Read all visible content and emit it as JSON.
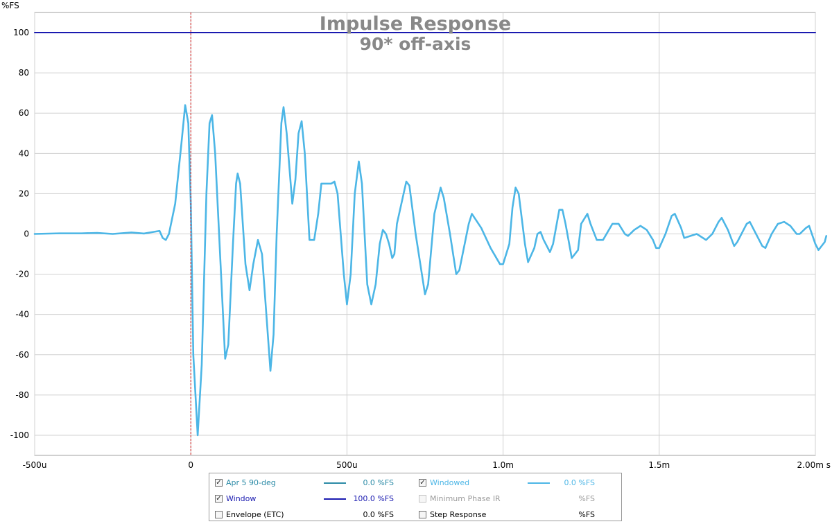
{
  "chart_data": {
    "type": "line",
    "title": "Impulse Response",
    "subtitle": "90* off-axis",
    "ylabel": "%FS",
    "xlabel": "s",
    "xlim": [
      -0.0005,
      0.002
    ],
    "ylim": [
      -110,
      110
    ],
    "x_ticks": [
      {
        "value": -0.0005,
        "label": "-500u"
      },
      {
        "value": 0,
        "label": "0"
      },
      {
        "value": 0.0005,
        "label": "500u"
      },
      {
        "value": 0.001,
        "label": "1.0m"
      },
      {
        "value": 0.0015,
        "label": "1.5m"
      },
      {
        "value": 0.002,
        "label": "2.00m s"
      }
    ],
    "y_ticks": [
      100,
      80,
      60,
      40,
      20,
      0,
      -20,
      -40,
      -60,
      -80,
      -100
    ],
    "grid": true,
    "marker_x": 0,
    "series": [
      {
        "name": "Windowed",
        "color": "#4cb6e6",
        "points": [
          [
            -0.0005,
            0
          ],
          [
            -0.00042,
            0.3
          ],
          [
            -0.00035,
            0.3
          ],
          [
            -0.0003,
            0.5
          ],
          [
            -0.00025,
            0
          ],
          [
            -0.00019,
            0.7
          ],
          [
            -0.00015,
            0.2
          ],
          [
            -0.00012,
            1
          ],
          [
            -0.0001,
            1.5
          ],
          [
            -9e-05,
            -2
          ],
          [
            -8e-05,
            -3
          ],
          [
            -7e-05,
            0
          ],
          [
            -5e-05,
            15
          ],
          [
            -3e-05,
            45
          ],
          [
            -1.8e-05,
            64
          ],
          [
            -8e-06,
            55
          ],
          [
            0,
            15
          ],
          [
            8e-06,
            -60
          ],
          [
            2.2e-05,
            -100
          ],
          [
            3.5e-05,
            -65
          ],
          [
            5e-05,
            20
          ],
          [
            6e-05,
            55
          ],
          [
            6.8e-05,
            59
          ],
          [
            7.8e-05,
            40
          ],
          [
            0.0001,
            -30
          ],
          [
            0.00011,
            -62
          ],
          [
            0.00012,
            -55
          ],
          [
            0.000135,
            -5
          ],
          [
            0.000145,
            25
          ],
          [
            0.00015,
            30
          ],
          [
            0.000158,
            25
          ],
          [
            0.000175,
            -15
          ],
          [
            0.000188,
            -28
          ],
          [
            0.0002,
            -15
          ],
          [
            0.000215,
            -3
          ],
          [
            0.000228,
            -10
          ],
          [
            0.000255,
            -68
          ],
          [
            0.000265,
            -50
          ],
          [
            0.000275,
            0
          ],
          [
            0.00029,
            55
          ],
          [
            0.000297,
            63
          ],
          [
            0.000307,
            50
          ],
          [
            0.000325,
            15
          ],
          [
            0.000335,
            27
          ],
          [
            0.000345,
            50
          ],
          [
            0.000355,
            56
          ],
          [
            0.000365,
            40
          ],
          [
            0.00038,
            -3
          ],
          [
            0.000395,
            -3
          ],
          [
            0.000408,
            10
          ],
          [
            0.000418,
            25
          ],
          [
            0.00043,
            25
          ],
          [
            0.00045,
            25
          ],
          [
            0.00046,
            26
          ],
          [
            0.00047,
            20
          ],
          [
            0.00049,
            -20
          ],
          [
            0.0005,
            -35
          ],
          [
            0.000512,
            -20
          ],
          [
            0.000525,
            20
          ],
          [
            0.000538,
            36
          ],
          [
            0.000548,
            25
          ],
          [
            0.000565,
            -25
          ],
          [
            0.000578,
            -35
          ],
          [
            0.000592,
            -25
          ],
          [
            0.000605,
            -5
          ],
          [
            0.000615,
            2
          ],
          [
            0.000625,
            0
          ],
          [
            0.000635,
            -5
          ],
          [
            0.000645,
            -12
          ],
          [
            0.000652,
            -10
          ],
          [
            0.00066,
            5
          ],
          [
            0.00069,
            26
          ],
          [
            0.0007,
            24
          ],
          [
            0.00072,
            0
          ],
          [
            0.00075,
            -30
          ],
          [
            0.00076,
            -25
          ],
          [
            0.00078,
            10
          ],
          [
            0.0008,
            23
          ],
          [
            0.00081,
            18
          ],
          [
            0.00083,
            0
          ],
          [
            0.00085,
            -20
          ],
          [
            0.00086,
            -18
          ],
          [
            0.00089,
            5
          ],
          [
            0.0009,
            10
          ],
          [
            0.00093,
            3
          ],
          [
            0.00096,
            -7
          ],
          [
            0.00099,
            -15
          ],
          [
            0.001,
            -15
          ],
          [
            0.00102,
            -5
          ],
          [
            0.00103,
            13
          ],
          [
            0.00104,
            23
          ],
          [
            0.00105,
            20
          ],
          [
            0.00107,
            -5
          ],
          [
            0.00108,
            -14
          ],
          [
            0.0011,
            -7
          ],
          [
            0.00111,
            0
          ],
          [
            0.00112,
            1
          ],
          [
            0.00113,
            -3
          ],
          [
            0.00115,
            -9
          ],
          [
            0.00116,
            -5
          ],
          [
            0.00118,
            12
          ],
          [
            0.00119,
            12
          ],
          [
            0.0012,
            5
          ],
          [
            0.00122,
            -12
          ],
          [
            0.00124,
            -8
          ],
          [
            0.00125,
            5
          ],
          [
            0.00127,
            10
          ],
          [
            0.00128,
            5
          ],
          [
            0.0013,
            -3
          ],
          [
            0.00132,
            -3
          ],
          [
            0.00135,
            5
          ],
          [
            0.00137,
            5
          ],
          [
            0.00139,
            0
          ],
          [
            0.0014,
            -1
          ],
          [
            0.00142,
            2
          ],
          [
            0.00144,
            4
          ],
          [
            0.00146,
            2
          ],
          [
            0.00148,
            -3
          ],
          [
            0.00149,
            -7
          ],
          [
            0.0015,
            -7
          ],
          [
            0.00152,
            0
          ],
          [
            0.00154,
            9
          ],
          [
            0.00155,
            10
          ],
          [
            0.00157,
            3
          ],
          [
            0.00158,
            -2
          ],
          [
            0.0016,
            -1
          ],
          [
            0.00162,
            0
          ],
          [
            0.00163,
            -1
          ],
          [
            0.00165,
            -3
          ],
          [
            0.00167,
            0
          ],
          [
            0.00169,
            6
          ],
          [
            0.0017,
            8
          ],
          [
            0.00172,
            2
          ],
          [
            0.00174,
            -6
          ],
          [
            0.00175,
            -4
          ],
          [
            0.00177,
            2
          ],
          [
            0.00178,
            5
          ],
          [
            0.00179,
            6
          ],
          [
            0.00181,
            0
          ],
          [
            0.00183,
            -6
          ],
          [
            0.00184,
            -7
          ],
          [
            0.00186,
            0
          ],
          [
            0.00188,
            5
          ],
          [
            0.0019,
            6
          ],
          [
            0.00192,
            4
          ],
          [
            0.00194,
            0
          ],
          [
            0.00195,
            0
          ],
          [
            0.00197,
            3
          ],
          [
            0.00198,
            4
          ],
          [
            0.002,
            -5
          ],
          [
            0.00201,
            -8
          ],
          [
            0.00203,
            -4
          ],
          [
            0.002035,
            -1
          ]
        ]
      },
      {
        "name": "Window",
        "color": "#1a1ab0",
        "points": [
          [
            -0.0005,
            100
          ],
          [
            0.002,
            100
          ]
        ]
      }
    ]
  },
  "legend": {
    "items": [
      {
        "label": "Apr 5 90-deg",
        "checked": true,
        "check_mark": "✓",
        "enabled": true,
        "label_color": "#2a8aa6",
        "swatch_color": "#2a8aa6",
        "value": "0.0 %FS",
        "value_color": "#2a8aa6"
      },
      {
        "label": "Windowed",
        "checked": true,
        "check_mark": "✓",
        "enabled": true,
        "label_color": "#4cb6e6",
        "swatch_color": "#4cb6e6",
        "value": "0.0 %FS",
        "value_color": "#4cb6e6"
      },
      {
        "label": "Window",
        "checked": true,
        "check_mark": "✓",
        "enabled": true,
        "label_color": "#1a1ab0",
        "swatch_color": "#1a1ab0",
        "value": "100.0 %FS",
        "value_color": "#1a1ab0"
      },
      {
        "label": "Minimum Phase IR",
        "checked": false,
        "check_mark": "",
        "enabled": false,
        "label_color": "#9a9a9a",
        "swatch_color": "",
        "value": "%FS",
        "value_color": "#9a9a9a"
      },
      {
        "label": "Envelope (ETC)",
        "checked": false,
        "check_mark": "",
        "enabled": true,
        "label_color": "#000000",
        "swatch_color": "",
        "value": "0.0 %FS",
        "value_color": "#000000"
      },
      {
        "label": "Step Response",
        "checked": false,
        "check_mark": "",
        "enabled": true,
        "label_color": "#000000",
        "swatch_color": "",
        "value": "%FS",
        "value_color": "#000000"
      }
    ]
  }
}
